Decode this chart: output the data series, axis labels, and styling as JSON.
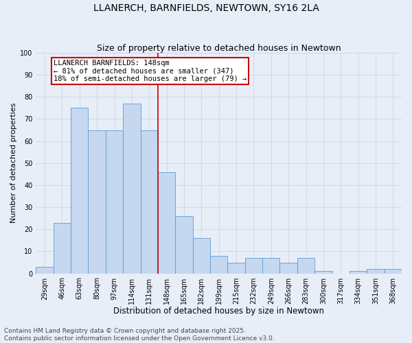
{
  "title": "LLANERCH, BARNFIELDS, NEWTOWN, SY16 2LA",
  "subtitle": "Size of property relative to detached houses in Newtown",
  "xlabel": "Distribution of detached houses by size in Newtown",
  "ylabel": "Number of detached properties",
  "categories": [
    "29sqm",
    "46sqm",
    "63sqm",
    "80sqm",
    "97sqm",
    "114sqm",
    "131sqm",
    "148sqm",
    "165sqm",
    "182sqm",
    "199sqm",
    "215sqm",
    "232sqm",
    "249sqm",
    "266sqm",
    "283sqm",
    "300sqm",
    "317sqm",
    "334sqm",
    "351sqm",
    "368sqm"
  ],
  "values": [
    3,
    23,
    75,
    65,
    65,
    77,
    65,
    46,
    26,
    16,
    8,
    5,
    7,
    7,
    5,
    7,
    1,
    0,
    1,
    2,
    2
  ],
  "bar_color": "#c5d8f0",
  "bar_edge_color": "#5b9bd5",
  "annotation_text": "LLANERCH BARNFIELDS: 148sqm\n← 81% of detached houses are smaller (347)\n18% of semi-detached houses are larger (79) →",
  "annotation_box_color": "#ffffff",
  "annotation_box_edge_color": "#cc0000",
  "annotation_text_fontsize": 7.5,
  "ylim": [
    0,
    100
  ],
  "yticks": [
    0,
    10,
    20,
    30,
    40,
    50,
    60,
    70,
    80,
    90,
    100
  ],
  "grid_color": "#d0d8e8",
  "background_color": "#e8eef8",
  "footer_text": "Contains HM Land Registry data © Crown copyright and database right 2025.\nContains public sector information licensed under the Open Government Licence v3.0.",
  "title_fontsize": 10,
  "subtitle_fontsize": 9,
  "xlabel_fontsize": 8.5,
  "ylabel_fontsize": 8,
  "footer_fontsize": 6.5,
  "tick_fontsize": 7
}
